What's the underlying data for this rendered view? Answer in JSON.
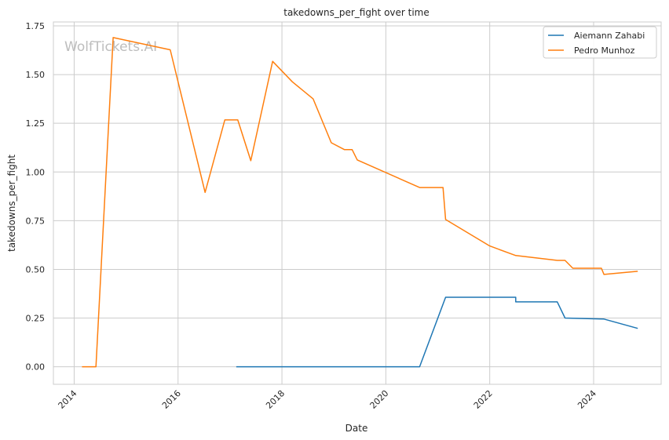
{
  "chart_data": {
    "type": "line",
    "title": "takedowns_per_fight over time",
    "xlabel": "Date",
    "ylabel": "takedowns_per_fight",
    "watermark": "WolfTickets.AI",
    "xlim": [
      2013.6,
      2025.3
    ],
    "ylim": [
      -0.09,
      1.77
    ],
    "x_ticks": [
      2014,
      2016,
      2018,
      2020,
      2022,
      2024
    ],
    "y_ticks": [
      0.0,
      0.25,
      0.5,
      0.75,
      1.0,
      1.25,
      1.5,
      1.75
    ],
    "y_tick_labels": [
      "0.00",
      "0.25",
      "0.50",
      "0.75",
      "1.00",
      "1.25",
      "1.50",
      "1.75"
    ],
    "grid": true,
    "legend_position": "top-right",
    "series": [
      {
        "name": "Aiemann Zahabi",
        "color": "#1f77b4",
        "x": [
          2017.12,
          2020.65,
          2021.15,
          2022.5,
          2022.5,
          2023.3,
          2023.45,
          2024.2,
          2024.85
        ],
        "y": [
          0.0,
          0.0,
          0.357,
          0.357,
          0.333,
          0.333,
          0.25,
          0.245,
          0.197
        ]
      },
      {
        "name": "Pedro Munhoz",
        "color": "#ff7f0e",
        "x": [
          2014.15,
          2014.42,
          2014.75,
          2015.85,
          2016.52,
          2016.9,
          2017.15,
          2017.4,
          2017.82,
          2018.2,
          2018.6,
          2018.95,
          2019.2,
          2019.35,
          2019.45,
          2020.65,
          2021.1,
          2021.15,
          2022.0,
          2022.5,
          2023.3,
          2023.45,
          2023.6,
          2024.15,
          2024.2,
          2024.85
        ],
        "y": [
          0.0,
          0.0,
          1.69,
          1.627,
          0.895,
          1.267,
          1.267,
          1.058,
          1.568,
          1.463,
          1.375,
          1.15,
          1.115,
          1.115,
          1.062,
          0.92,
          0.92,
          0.756,
          0.62,
          0.571,
          0.546,
          0.546,
          0.506,
          0.506,
          0.474,
          0.49
        ]
      }
    ]
  }
}
